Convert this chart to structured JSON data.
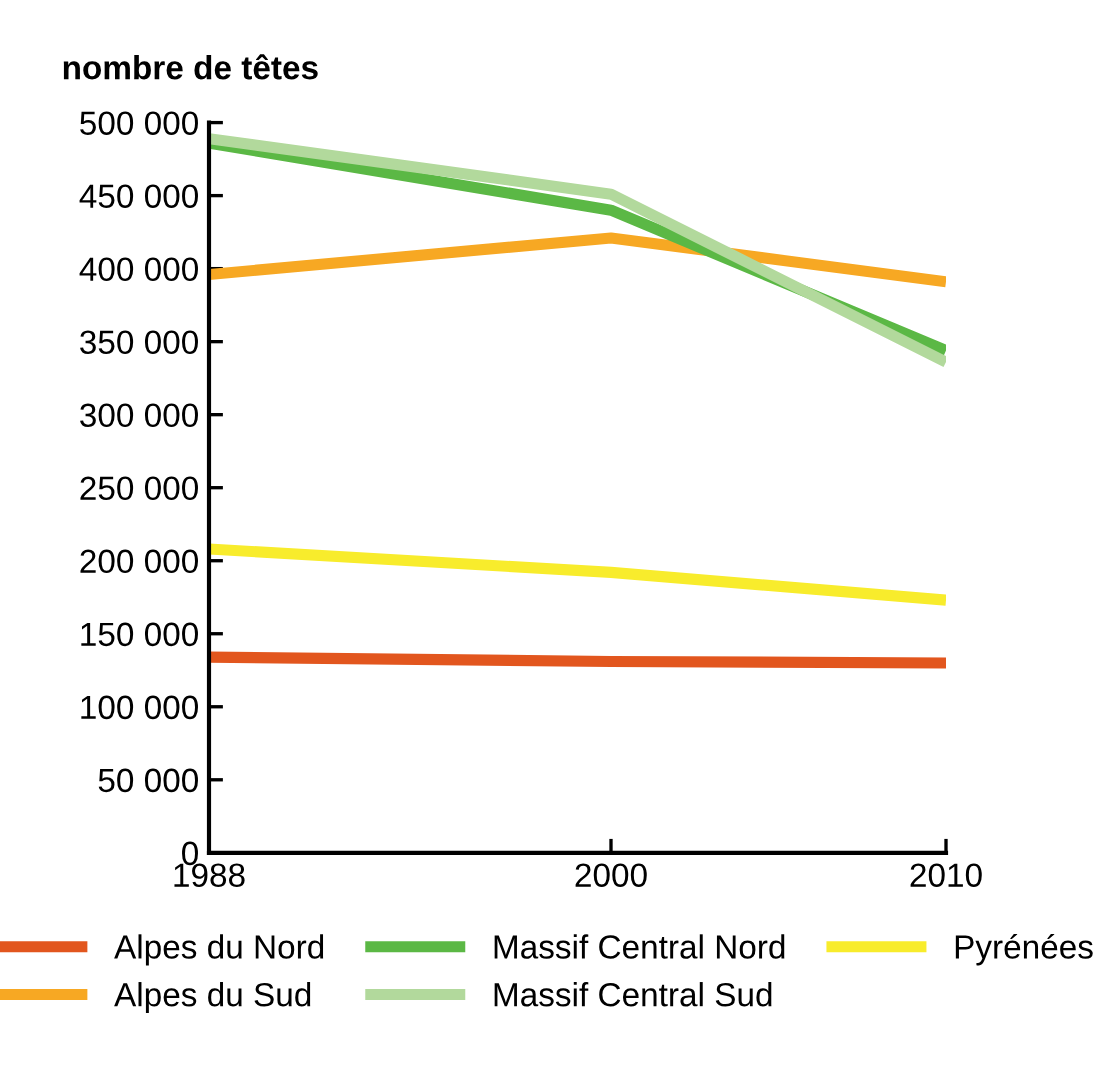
{
  "chart_data": {
    "type": "line",
    "ylabel": "nombre de têtes",
    "x": [
      1988,
      2000,
      2010
    ],
    "series": [
      {
        "name": "Alpes du Nord",
        "color": "#e2561e",
        "values": [
          134000,
          131000,
          130000
        ]
      },
      {
        "name": "Alpes du Sud",
        "color": "#f7a823",
        "values": [
          396000,
          421000,
          391000
        ]
      },
      {
        "name": "Massif Central Nord",
        "color": "#5bb845",
        "values": [
          486000,
          440000,
          344000
        ]
      },
      {
        "name": "Massif Central Sud",
        "color": "#b2d99c",
        "values": [
          489000,
          451000,
          336000
        ]
      },
      {
        "name": "Pyrénées",
        "color": "#f8ec2c",
        "values": [
          208000,
          192000,
          173000
        ]
      }
    ],
    "xlim": [
      1988,
      2010
    ],
    "xticks": [
      1988,
      2000,
      2010
    ],
    "ylim": [
      0,
      500000
    ],
    "yticks": [
      0,
      {
        "value": 50000,
        "label": "50 000"
      },
      {
        "value": 100000,
        "label": "100 000"
      },
      {
        "value": 150000,
        "label": "150 000"
      },
      {
        "value": 200000,
        "label": "200 000"
      },
      {
        "value": 250000,
        "label": "250 000"
      },
      {
        "value": 300000,
        "label": "300 000"
      },
      {
        "value": 350000,
        "label": "350 000"
      },
      {
        "value": 400000,
        "label": "400 000"
      },
      {
        "value": 450000,
        "label": "450 000"
      },
      {
        "value": 500000,
        "label": "500 000"
      }
    ],
    "grid": false,
    "legend": "bottom",
    "marker": "none",
    "line_style": "solid"
  }
}
